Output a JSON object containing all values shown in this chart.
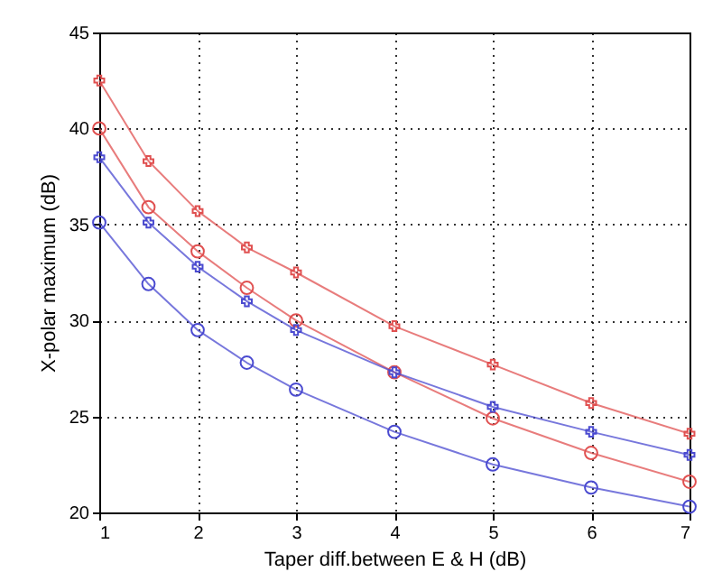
{
  "chart_data": {
    "type": "line",
    "xlabel": "Taper diff.between E & H (dB)",
    "ylabel": "X-polar maximum (dB)",
    "x": [
      1,
      1.5,
      2,
      2.5,
      3,
      4,
      5,
      6,
      7
    ],
    "series": [
      {
        "color": "#e05050",
        "marker": "cross",
        "values": [
          42.5,
          38.3,
          35.7,
          33.8,
          32.5,
          29.7,
          27.7,
          25.7,
          24.1
        ]
      },
      {
        "color": "#e05050",
        "marker": "circle",
        "values": [
          40.0,
          35.9,
          33.6,
          31.7,
          30.0,
          27.3,
          24.9,
          23.1,
          21.6
        ]
      },
      {
        "color": "#4a4ad0",
        "marker": "cross",
        "values": [
          38.5,
          35.1,
          32.8,
          31.0,
          29.5,
          27.3,
          25.5,
          24.2,
          23.0
        ]
      },
      {
        "color": "#4a4ad0",
        "marker": "circle",
        "values": [
          35.1,
          31.9,
          29.5,
          27.8,
          26.4,
          24.2,
          22.5,
          21.3,
          20.3
        ]
      }
    ],
    "xlim": [
      1,
      7
    ],
    "xticks": [
      1,
      2,
      3,
      4,
      5,
      6,
      7
    ],
    "ylim": [
      20,
      45
    ],
    "yticks": [
      20,
      25,
      30,
      35,
      40,
      45
    ],
    "grid": true,
    "line_style": "solid"
  }
}
